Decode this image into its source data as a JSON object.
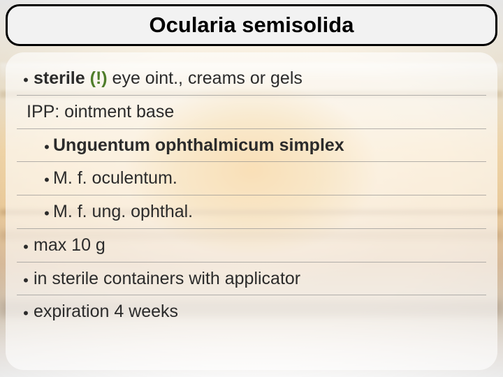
{
  "colors": {
    "title_bg": "#f2f2f2",
    "title_border": "#000000",
    "title_text": "#000000",
    "card_bg": "rgba(255,255,255,0.62)",
    "row_divider": "rgba(140,140,140,0.65)",
    "body_text": "#2b2b2b",
    "accent_green": "#4f7d2a"
  },
  "title": "Ocularia semisolida",
  "rows": {
    "r1_pre_bold": "sterile",
    "r1_accent": " (!)",
    "r1_rest": "  eye oint., creams or gels",
    "r2": "IPP: ointment base",
    "r3": "Unguentum ophthalmicum simplex",
    "r4": "M. f. oculentum.",
    "r5": "M. f. ung. ophthal.",
    "r6": "max 10 g",
    "r7": "in sterile containers with applicator",
    "r8": "expiration 4 weeks"
  }
}
